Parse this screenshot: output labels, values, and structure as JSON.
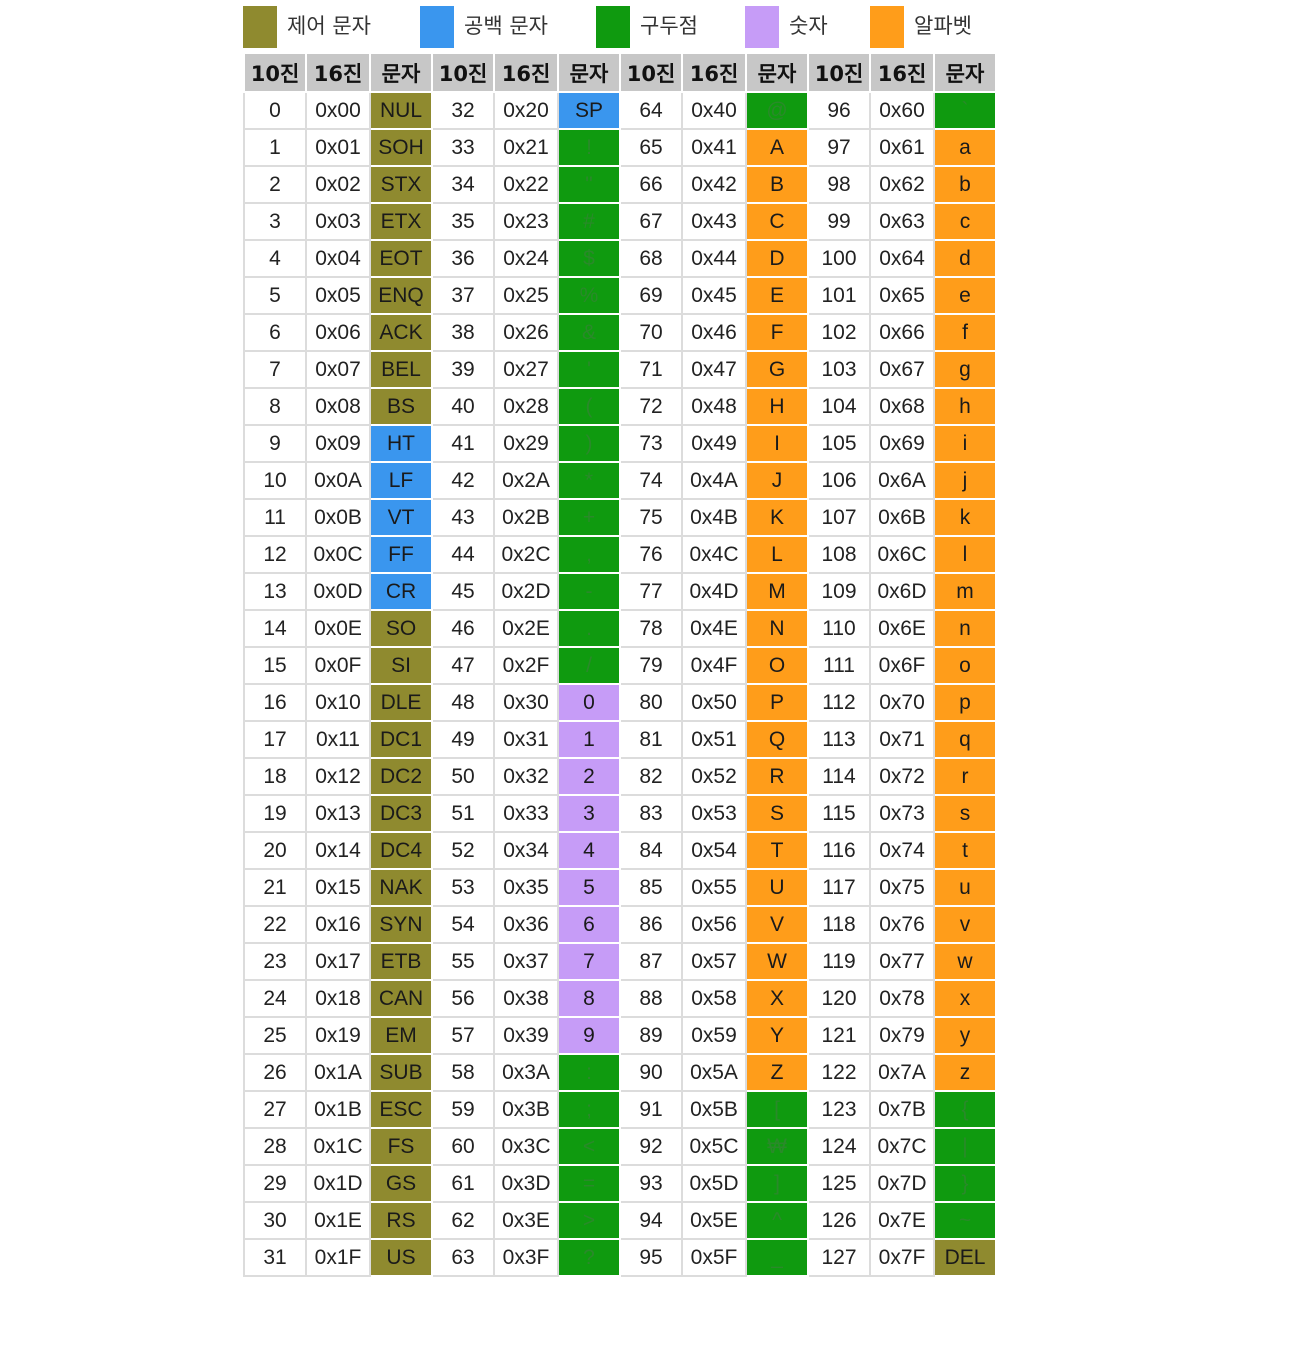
{
  "legend": [
    {
      "label": "제어 문자",
      "color": "#8f8a2f",
      "icon": "glyph-swatch"
    },
    {
      "label": "공백 문자",
      "color": "#3a96ee"
    },
    {
      "label": "구두점",
      "color": "#0f9a0f"
    },
    {
      "label": "숫자",
      "color": "#c69cf7"
    },
    {
      "label": "알파벳",
      "color": "#ff9d1a"
    }
  ],
  "colors": {
    "control": "#8f8a2f",
    "whitespace": "#3a96ee",
    "punctuation": "#0f9a0f",
    "digit": "#c69cf7",
    "alpha": "#ff9d1a",
    "header_bg": "#c7c7c7"
  },
  "table": {
    "headers": [
      "10진",
      "16진",
      "문자",
      "10진",
      "16진",
      "문자",
      "10진",
      "16진",
      "문자",
      "10진",
      "16진",
      "문자"
    ],
    "rows": [
      [
        {
          "dec": "0",
          "hex": "0x00",
          "char": "NUL",
          "cat": "control"
        },
        {
          "dec": "32",
          "hex": "0x20",
          "char": "SP",
          "cat": "whitespace"
        },
        {
          "dec": "64",
          "hex": "0x40",
          "char": "@",
          "cat": "punctuation"
        },
        {
          "dec": "96",
          "hex": "0x60",
          "char": "`",
          "cat": "punctuation"
        }
      ],
      [
        {
          "dec": "1",
          "hex": "0x01",
          "char": "SOH",
          "cat": "control"
        },
        {
          "dec": "33",
          "hex": "0x21",
          "char": "!",
          "cat": "punctuation"
        },
        {
          "dec": "65",
          "hex": "0x41",
          "char": "A",
          "cat": "alpha"
        },
        {
          "dec": "97",
          "hex": "0x61",
          "char": "a",
          "cat": "alpha"
        }
      ],
      [
        {
          "dec": "2",
          "hex": "0x02",
          "char": "STX",
          "cat": "control"
        },
        {
          "dec": "34",
          "hex": "0x22",
          "char": "\"",
          "cat": "punctuation"
        },
        {
          "dec": "66",
          "hex": "0x42",
          "char": "B",
          "cat": "alpha"
        },
        {
          "dec": "98",
          "hex": "0x62",
          "char": "b",
          "cat": "alpha"
        }
      ],
      [
        {
          "dec": "3",
          "hex": "0x03",
          "char": "ETX",
          "cat": "control"
        },
        {
          "dec": "35",
          "hex": "0x23",
          "char": "#",
          "cat": "punctuation"
        },
        {
          "dec": "67",
          "hex": "0x43",
          "char": "C",
          "cat": "alpha"
        },
        {
          "dec": "99",
          "hex": "0x63",
          "char": "c",
          "cat": "alpha"
        }
      ],
      [
        {
          "dec": "4",
          "hex": "0x04",
          "char": "EOT",
          "cat": "control"
        },
        {
          "dec": "36",
          "hex": "0x24",
          "char": "$",
          "cat": "punctuation"
        },
        {
          "dec": "68",
          "hex": "0x44",
          "char": "D",
          "cat": "alpha"
        },
        {
          "dec": "100",
          "hex": "0x64",
          "char": "d",
          "cat": "alpha"
        }
      ],
      [
        {
          "dec": "5",
          "hex": "0x05",
          "char": "ENQ",
          "cat": "control"
        },
        {
          "dec": "37",
          "hex": "0x25",
          "char": "%",
          "cat": "punctuation"
        },
        {
          "dec": "69",
          "hex": "0x45",
          "char": "E",
          "cat": "alpha"
        },
        {
          "dec": "101",
          "hex": "0x65",
          "char": "e",
          "cat": "alpha"
        }
      ],
      [
        {
          "dec": "6",
          "hex": "0x06",
          "char": "ACK",
          "cat": "control"
        },
        {
          "dec": "38",
          "hex": "0x26",
          "char": "&",
          "cat": "punctuation"
        },
        {
          "dec": "70",
          "hex": "0x46",
          "char": "F",
          "cat": "alpha"
        },
        {
          "dec": "102",
          "hex": "0x66",
          "char": "f",
          "cat": "alpha"
        }
      ],
      [
        {
          "dec": "7",
          "hex": "0x07",
          "char": "BEL",
          "cat": "control"
        },
        {
          "dec": "39",
          "hex": "0x27",
          "char": "'",
          "cat": "punctuation"
        },
        {
          "dec": "71",
          "hex": "0x47",
          "char": "G",
          "cat": "alpha"
        },
        {
          "dec": "103",
          "hex": "0x67",
          "char": "g",
          "cat": "alpha"
        }
      ],
      [
        {
          "dec": "8",
          "hex": "0x08",
          "char": "BS",
          "cat": "control"
        },
        {
          "dec": "40",
          "hex": "0x28",
          "char": "(",
          "cat": "punctuation"
        },
        {
          "dec": "72",
          "hex": "0x48",
          "char": "H",
          "cat": "alpha"
        },
        {
          "dec": "104",
          "hex": "0x68",
          "char": "h",
          "cat": "alpha"
        }
      ],
      [
        {
          "dec": "9",
          "hex": "0x09",
          "char": "HT",
          "cat": "whitespace"
        },
        {
          "dec": "41",
          "hex": "0x29",
          "char": ")",
          "cat": "punctuation"
        },
        {
          "dec": "73",
          "hex": "0x49",
          "char": "I",
          "cat": "alpha"
        },
        {
          "dec": "105",
          "hex": "0x69",
          "char": "i",
          "cat": "alpha"
        }
      ],
      [
        {
          "dec": "10",
          "hex": "0x0A",
          "char": "LF",
          "cat": "whitespace"
        },
        {
          "dec": "42",
          "hex": "0x2A",
          "char": "*",
          "cat": "punctuation"
        },
        {
          "dec": "74",
          "hex": "0x4A",
          "char": "J",
          "cat": "alpha"
        },
        {
          "dec": "106",
          "hex": "0x6A",
          "char": "j",
          "cat": "alpha"
        }
      ],
      [
        {
          "dec": "11",
          "hex": "0x0B",
          "char": "VT",
          "cat": "whitespace"
        },
        {
          "dec": "43",
          "hex": "0x2B",
          "char": "+",
          "cat": "punctuation"
        },
        {
          "dec": "75",
          "hex": "0x4B",
          "char": "K",
          "cat": "alpha"
        },
        {
          "dec": "107",
          "hex": "0x6B",
          "char": "k",
          "cat": "alpha"
        }
      ],
      [
        {
          "dec": "12",
          "hex": "0x0C",
          "char": "FF",
          "cat": "whitespace"
        },
        {
          "dec": "44",
          "hex": "0x2C",
          "char": ",",
          "cat": "punctuation"
        },
        {
          "dec": "76",
          "hex": "0x4C",
          "char": "L",
          "cat": "alpha"
        },
        {
          "dec": "108",
          "hex": "0x6C",
          "char": "l",
          "cat": "alpha"
        }
      ],
      [
        {
          "dec": "13",
          "hex": "0x0D",
          "char": "CR",
          "cat": "whitespace"
        },
        {
          "dec": "45",
          "hex": "0x2D",
          "char": "-",
          "cat": "punctuation"
        },
        {
          "dec": "77",
          "hex": "0x4D",
          "char": "M",
          "cat": "alpha"
        },
        {
          "dec": "109",
          "hex": "0x6D",
          "char": "m",
          "cat": "alpha"
        }
      ],
      [
        {
          "dec": "14",
          "hex": "0x0E",
          "char": "SO",
          "cat": "control"
        },
        {
          "dec": "46",
          "hex": "0x2E",
          "char": ".",
          "cat": "punctuation"
        },
        {
          "dec": "78",
          "hex": "0x4E",
          "char": "N",
          "cat": "alpha"
        },
        {
          "dec": "110",
          "hex": "0x6E",
          "char": "n",
          "cat": "alpha"
        }
      ],
      [
        {
          "dec": "15",
          "hex": "0x0F",
          "char": "SI",
          "cat": "control"
        },
        {
          "dec": "47",
          "hex": "0x2F",
          "char": "/",
          "cat": "punctuation"
        },
        {
          "dec": "79",
          "hex": "0x4F",
          "char": "O",
          "cat": "alpha"
        },
        {
          "dec": "111",
          "hex": "0x6F",
          "char": "o",
          "cat": "alpha"
        }
      ],
      [
        {
          "dec": "16",
          "hex": "0x10",
          "char": "DLE",
          "cat": "control"
        },
        {
          "dec": "48",
          "hex": "0x30",
          "char": "0",
          "cat": "digit"
        },
        {
          "dec": "80",
          "hex": "0x50",
          "char": "P",
          "cat": "alpha"
        },
        {
          "dec": "112",
          "hex": "0x70",
          "char": "p",
          "cat": "alpha"
        }
      ],
      [
        {
          "dec": "17",
          "hex": "0x11",
          "char": "DC1",
          "cat": "control"
        },
        {
          "dec": "49",
          "hex": "0x31",
          "char": "1",
          "cat": "digit"
        },
        {
          "dec": "81",
          "hex": "0x51",
          "char": "Q",
          "cat": "alpha"
        },
        {
          "dec": "113",
          "hex": "0x71",
          "char": "q",
          "cat": "alpha"
        }
      ],
      [
        {
          "dec": "18",
          "hex": "0x12",
          "char": "DC2",
          "cat": "control"
        },
        {
          "dec": "50",
          "hex": "0x32",
          "char": "2",
          "cat": "digit"
        },
        {
          "dec": "82",
          "hex": "0x52",
          "char": "R",
          "cat": "alpha"
        },
        {
          "dec": "114",
          "hex": "0x72",
          "char": "r",
          "cat": "alpha"
        }
      ],
      [
        {
          "dec": "19",
          "hex": "0x13",
          "char": "DC3",
          "cat": "control"
        },
        {
          "dec": "51",
          "hex": "0x33",
          "char": "3",
          "cat": "digit"
        },
        {
          "dec": "83",
          "hex": "0x53",
          "char": "S",
          "cat": "alpha"
        },
        {
          "dec": "115",
          "hex": "0x73",
          "char": "s",
          "cat": "alpha"
        }
      ],
      [
        {
          "dec": "20",
          "hex": "0x14",
          "char": "DC4",
          "cat": "control"
        },
        {
          "dec": "52",
          "hex": "0x34",
          "char": "4",
          "cat": "digit"
        },
        {
          "dec": "84",
          "hex": "0x54",
          "char": "T",
          "cat": "alpha"
        },
        {
          "dec": "116",
          "hex": "0x74",
          "char": "t",
          "cat": "alpha"
        }
      ],
      [
        {
          "dec": "21",
          "hex": "0x15",
          "char": "NAK",
          "cat": "control"
        },
        {
          "dec": "53",
          "hex": "0x35",
          "char": "5",
          "cat": "digit"
        },
        {
          "dec": "85",
          "hex": "0x55",
          "char": "U",
          "cat": "alpha"
        },
        {
          "dec": "117",
          "hex": "0x75",
          "char": "u",
          "cat": "alpha"
        }
      ],
      [
        {
          "dec": "22",
          "hex": "0x16",
          "char": "SYN",
          "cat": "control"
        },
        {
          "dec": "54",
          "hex": "0x36",
          "char": "6",
          "cat": "digit"
        },
        {
          "dec": "86",
          "hex": "0x56",
          "char": "V",
          "cat": "alpha"
        },
        {
          "dec": "118",
          "hex": "0x76",
          "char": "v",
          "cat": "alpha"
        }
      ],
      [
        {
          "dec": "23",
          "hex": "0x17",
          "char": "ETB",
          "cat": "control"
        },
        {
          "dec": "55",
          "hex": "0x37",
          "char": "7",
          "cat": "digit"
        },
        {
          "dec": "87",
          "hex": "0x57",
          "char": "W",
          "cat": "alpha"
        },
        {
          "dec": "119",
          "hex": "0x77",
          "char": "w",
          "cat": "alpha"
        }
      ],
      [
        {
          "dec": "24",
          "hex": "0x18",
          "char": "CAN",
          "cat": "control"
        },
        {
          "dec": "56",
          "hex": "0x38",
          "char": "8",
          "cat": "digit"
        },
        {
          "dec": "88",
          "hex": "0x58",
          "char": "X",
          "cat": "alpha"
        },
        {
          "dec": "120",
          "hex": "0x78",
          "char": "x",
          "cat": "alpha"
        }
      ],
      [
        {
          "dec": "25",
          "hex": "0x19",
          "char": "EM",
          "cat": "control"
        },
        {
          "dec": "57",
          "hex": "0x39",
          "char": "9",
          "cat": "digit"
        },
        {
          "dec": "89",
          "hex": "0x59",
          "char": "Y",
          "cat": "alpha"
        },
        {
          "dec": "121",
          "hex": "0x79",
          "char": "y",
          "cat": "alpha"
        }
      ],
      [
        {
          "dec": "26",
          "hex": "0x1A",
          "char": "SUB",
          "cat": "control"
        },
        {
          "dec": "58",
          "hex": "0x3A",
          "char": ":",
          "cat": "punctuation"
        },
        {
          "dec": "90",
          "hex": "0x5A",
          "char": "Z",
          "cat": "alpha"
        },
        {
          "dec": "122",
          "hex": "0x7A",
          "char": "z",
          "cat": "alpha"
        }
      ],
      [
        {
          "dec": "27",
          "hex": "0x1B",
          "char": "ESC",
          "cat": "control"
        },
        {
          "dec": "59",
          "hex": "0x3B",
          "char": ";",
          "cat": "punctuation"
        },
        {
          "dec": "91",
          "hex": "0x5B",
          "char": "[",
          "cat": "punctuation"
        },
        {
          "dec": "123",
          "hex": "0x7B",
          "char": "{",
          "cat": "punctuation"
        }
      ],
      [
        {
          "dec": "28",
          "hex": "0x1C",
          "char": "FS",
          "cat": "control"
        },
        {
          "dec": "60",
          "hex": "0x3C",
          "char": "<",
          "cat": "punctuation"
        },
        {
          "dec": "92",
          "hex": "0x5C",
          "char": "₩",
          "cat": "punctuation"
        },
        {
          "dec": "124",
          "hex": "0x7C",
          "char": "|",
          "cat": "punctuation"
        }
      ],
      [
        {
          "dec": "29",
          "hex": "0x1D",
          "char": "GS",
          "cat": "control"
        },
        {
          "dec": "61",
          "hex": "0x3D",
          "char": "=",
          "cat": "punctuation"
        },
        {
          "dec": "93",
          "hex": "0x5D",
          "char": "]",
          "cat": "punctuation"
        },
        {
          "dec": "125",
          "hex": "0x7D",
          "char": "}",
          "cat": "punctuation"
        }
      ],
      [
        {
          "dec": "30",
          "hex": "0x1E",
          "char": "RS",
          "cat": "control"
        },
        {
          "dec": "62",
          "hex": "0x3E",
          "char": ">",
          "cat": "punctuation"
        },
        {
          "dec": "94",
          "hex": "0x5E",
          "char": "^",
          "cat": "punctuation"
        },
        {
          "dec": "126",
          "hex": "0x7E",
          "char": "~",
          "cat": "punctuation"
        }
      ],
      [
        {
          "dec": "31",
          "hex": "0x1F",
          "char": "US",
          "cat": "control"
        },
        {
          "dec": "63",
          "hex": "0x3F",
          "char": "?",
          "cat": "punctuation"
        },
        {
          "dec": "95",
          "hex": "0x5F",
          "char": "_",
          "cat": "punctuation"
        },
        {
          "dec": "127",
          "hex": "0x7F",
          "char": "DEL",
          "cat": "control"
        }
      ]
    ]
  }
}
